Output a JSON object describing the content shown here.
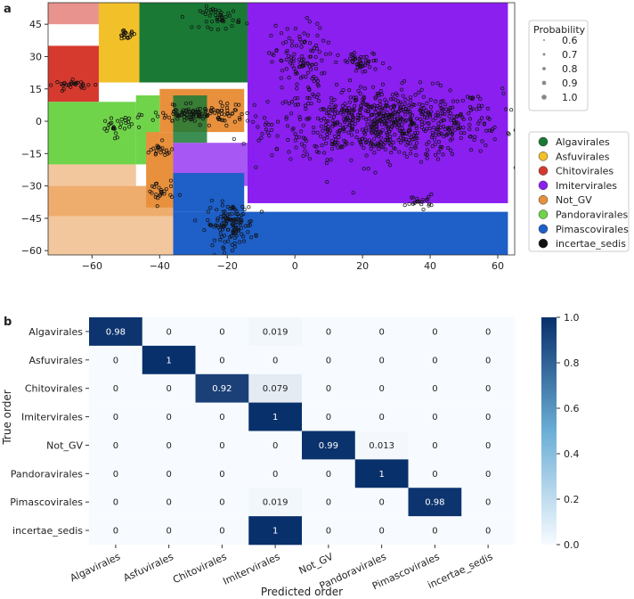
{
  "panels": {
    "a": "a",
    "b": "b"
  },
  "chart_data": [
    {
      "type": "scatter",
      "panel": "a",
      "xlabel": "",
      "ylabel": "",
      "xlim": [
        -73,
        65
      ],
      "ylim": [
        -62,
        55
      ],
      "xticks": [
        "−60",
        "−40",
        "−20",
        "0",
        "20",
        "40",
        "60"
      ],
      "xtick_values": [
        -60,
        -40,
        -20,
        0,
        20,
        40,
        60
      ],
      "yticks": [
        "45",
        "30",
        "15",
        "0",
        "−15",
        "−30",
        "−45",
        "−60"
      ],
      "ytick_values": [
        45,
        30,
        15,
        0,
        -15,
        -30,
        -45,
        -60
      ],
      "size_legend": {
        "title": "Probability",
        "values": [
          "0.6",
          "0.7",
          "0.8",
          "0.9",
          "1.0"
        ]
      },
      "class_legend": [
        {
          "name": "Algavirales",
          "color": "#1a7a35"
        },
        {
          "name": "Asfuvirales",
          "color": "#f2c029"
        },
        {
          "name": "Chitovirales",
          "color": "#d63a2f"
        },
        {
          "name": "Imitervirales",
          "color": "#8a1ff0"
        },
        {
          "name": "Not_GV",
          "color": "#e8903c"
        },
        {
          "name": "Pandoravirales",
          "color": "#6fd44a"
        },
        {
          "name": "Pimascovirales",
          "color": "#1e5fc8"
        },
        {
          "name": "incertae_sedis",
          "color": "#111111"
        }
      ],
      "regions": [
        {
          "cls": "Chitovirales",
          "x0": -73,
          "x1": -58,
          "y0": 45,
          "y1": 55,
          "alpha": 0.55
        },
        {
          "cls": "Asfuvirales",
          "x0": -58,
          "x1": -46,
          "y0": 18,
          "y1": 55,
          "alpha": 1
        },
        {
          "cls": "Algavirales",
          "x0": -46,
          "x1": -14,
          "y0": 18,
          "y1": 55,
          "alpha": 1
        },
        {
          "cls": "Imitervirales",
          "x0": -14,
          "x1": 63,
          "y0": -38,
          "y1": 55,
          "alpha": 1
        },
        {
          "cls": "Chitovirales",
          "x0": -73,
          "x1": -58,
          "y0": 9,
          "y1": 35,
          "alpha": 1
        },
        {
          "cls": "Pandoravirales",
          "x0": -73,
          "x1": -47,
          "y0": -20,
          "y1": 9,
          "alpha": 1
        },
        {
          "cls": "Pandoravirales",
          "x0": -47,
          "x1": -40,
          "y0": -20,
          "y1": 12,
          "alpha": 1
        },
        {
          "cls": "Not_GV",
          "x0": -73,
          "x1": -47,
          "y0": -30,
          "y1": -20,
          "alpha": 0.5
        },
        {
          "cls": "Not_GV",
          "x0": -73,
          "x1": -36,
          "y0": -44,
          "y1": -30,
          "alpha": 0.75
        },
        {
          "cls": "Not_GV",
          "x0": -73,
          "x1": -36,
          "y0": -62,
          "y1": -44,
          "alpha": 0.5
        },
        {
          "cls": "Not_GV",
          "x0": -40,
          "x1": -15,
          "y0": -5,
          "y1": 15,
          "alpha": 1
        },
        {
          "cls": "Not_GV",
          "x0": -44,
          "x1": -36,
          "y0": -40,
          "y1": -5,
          "alpha": 1
        },
        {
          "cls": "Algavirales",
          "x0": -36,
          "x1": -26,
          "y0": -10,
          "y1": 12,
          "alpha": 0.85
        },
        {
          "cls": "Imitervirales",
          "x0": -36,
          "x1": -12,
          "y0": -30,
          "y1": -10,
          "alpha": 0.75
        },
        {
          "cls": "Pimascovirales",
          "x0": -36,
          "x1": 63,
          "y0": -62,
          "y1": -42,
          "alpha": 1
        },
        {
          "cls": "Pimascovirales",
          "x0": -36,
          "x1": -15,
          "y0": -42,
          "y1": -24,
          "alpha": 1
        }
      ],
      "clusters": [
        {
          "cx": 27,
          "cy": -1,
          "rx": 34,
          "ry": 16,
          "n": 750
        },
        {
          "cx": 1,
          "cy": 28,
          "rx": 8,
          "ry": 17,
          "n": 110
        },
        {
          "cx": 20,
          "cy": 27,
          "rx": 7,
          "ry": 5,
          "n": 45
        },
        {
          "cx": 37,
          "cy": -37,
          "rx": 4,
          "ry": 3,
          "n": 22
        },
        {
          "cx": -19,
          "cy": -48,
          "rx": 7,
          "ry": 10,
          "n": 130
        },
        {
          "cx": -22,
          "cy": 48,
          "rx": 6,
          "ry": 5,
          "n": 45
        },
        {
          "cx": -50,
          "cy": 40,
          "rx": 3,
          "ry": 2,
          "n": 20
        },
        {
          "cx": -65,
          "cy": 17,
          "rx": 6,
          "ry": 2,
          "n": 30
        },
        {
          "cx": -53,
          "cy": -2,
          "rx": 5,
          "ry": 5,
          "n": 30
        },
        {
          "cx": -28,
          "cy": 3,
          "rx": 14,
          "ry": 4,
          "n": 120
        },
        {
          "cx": -40,
          "cy": -33,
          "rx": 4,
          "ry": 6,
          "n": 25
        },
        {
          "cx": -40,
          "cy": -14,
          "rx": 5,
          "ry": 4,
          "n": 20
        }
      ]
    },
    {
      "type": "heatmap",
      "panel": "b",
      "xlabel": "Predicted order",
      "ylabel": "True order",
      "categories": [
        "Algavirales",
        "Asfuvirales",
        "Chitovirales",
        "Imitervirales",
        "Not_GV",
        "Pandoravirales",
        "Pimascovirales",
        "incertae_sedis"
      ],
      "labels": [
        [
          "0.98",
          "0",
          "0",
          "0.019",
          "0",
          "0",
          "0",
          "0"
        ],
        [
          "0",
          "1",
          "0",
          "0",
          "0",
          "0",
          "0",
          "0"
        ],
        [
          "0",
          "0",
          "0.92",
          "0.079",
          "0",
          "0",
          "0",
          "0"
        ],
        [
          "0",
          "0",
          "0",
          "1",
          "0",
          "0",
          "0",
          "0"
        ],
        [
          "0",
          "0",
          "0",
          "0",
          "0.99",
          "0.013",
          "0",
          "0"
        ],
        [
          "0",
          "0",
          "0",
          "0",
          "0",
          "1",
          "0",
          "0"
        ],
        [
          "0",
          "0",
          "0",
          "0.019",
          "0",
          "0",
          "0.98",
          "0"
        ],
        [
          "0",
          "0",
          "0",
          "1",
          "0",
          "0",
          "0",
          "0"
        ]
      ],
      "values": [
        [
          0.98,
          0,
          0,
          0.019,
          0,
          0,
          0,
          0
        ],
        [
          0,
          1,
          0,
          0,
          0,
          0,
          0,
          0
        ],
        [
          0,
          0,
          0.92,
          0.079,
          0,
          0,
          0,
          0
        ],
        [
          0,
          0,
          0,
          1,
          0,
          0,
          0,
          0
        ],
        [
          0,
          0,
          0,
          0,
          0.99,
          0.013,
          0,
          0
        ],
        [
          0,
          0,
          0,
          0,
          0,
          1,
          0,
          0
        ],
        [
          0,
          0,
          0,
          0.019,
          0,
          0,
          0.98,
          0
        ],
        [
          0,
          0,
          0,
          1,
          0,
          0,
          0,
          0
        ]
      ],
      "colorbar": {
        "range": [
          0,
          1
        ],
        "ticks": [
          "0.0",
          "0.2",
          "0.4",
          "0.6",
          "0.8",
          "1.0"
        ],
        "tick_values": [
          0,
          0.2,
          0.4,
          0.6,
          0.8,
          1.0
        ],
        "colors": [
          "#f7fbff",
          "#08306b"
        ]
      }
    }
  ]
}
